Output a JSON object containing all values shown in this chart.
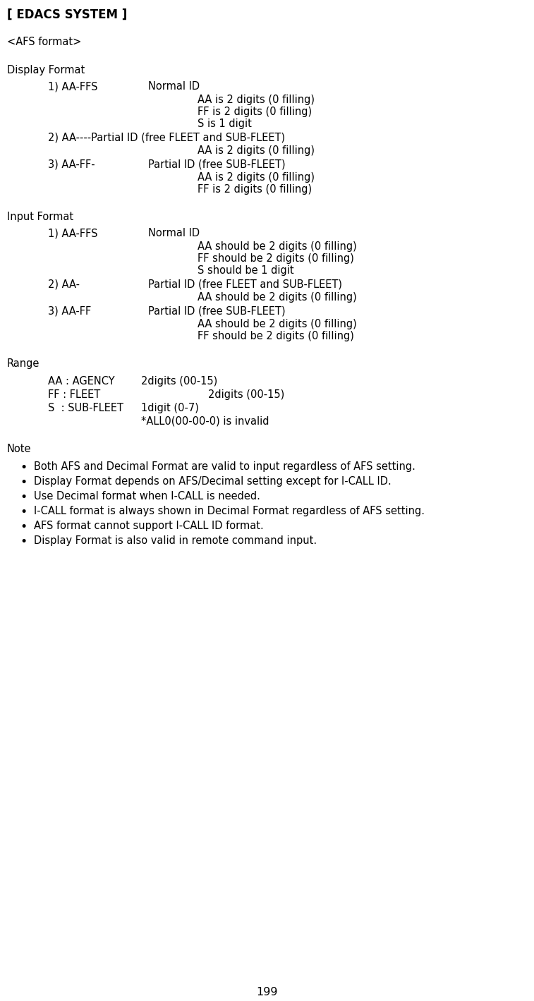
{
  "title": "[ EDACS SYSTEM ]",
  "subtitle": "<AFS format>",
  "bg_color": "#ffffff",
  "highlight_color": "#d0d0d0",
  "font_size": 10.5,
  "title_font_size": 12,
  "page_number": "199",
  "note_items": [
    "Both AFS and Decimal Format are valid to input regardless of AFS setting.",
    "Display Format depends on AFS/Decimal setting except for I-CALL ID.",
    "Use Decimal format when I-CALL is needed.",
    "I-CALL format is always shown in Decimal Format regardless of AFS setting.",
    "AFS format cannot support I-CALL ID format.",
    "Display Format is also valid in remote command input."
  ]
}
